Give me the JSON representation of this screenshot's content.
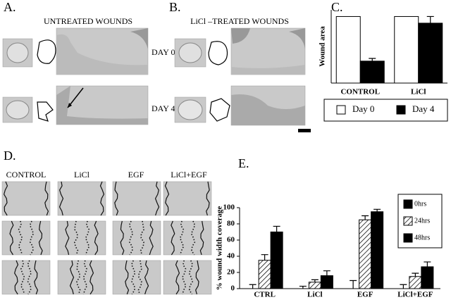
{
  "panels": {
    "A": {
      "label": "A.",
      "title": "UNTREATED WOUNDS"
    },
    "B": {
      "label": "B.",
      "title": "LiCl –TREATED WOUNDS"
    },
    "day_labels": [
      "DAY 0",
      "DAY 4"
    ],
    "C": {
      "label": "C."
    },
    "D": {
      "label": "D.",
      "columns": [
        "CONTROL",
        "LiCl",
        "EGF",
        "LiCl+EGF"
      ]
    },
    "E": {
      "label": "E."
    }
  },
  "chart_data": [
    {
      "type": "bar",
      "y_label": "Wound area",
      "categories": [
        "CONTROL",
        "LiCl"
      ],
      "ylim": [
        0,
        110
      ],
      "series": [
        {
          "name": "Day 0",
          "color": "#ffffff",
          "values": [
            100,
            100
          ]
        },
        {
          "name": "Day 4",
          "color": "#000000",
          "values": [
            33,
            90
          ],
          "errors": [
            4,
            10
          ]
        }
      ]
    },
    {
      "type": "bar",
      "y_label": "% wound width coverage",
      "categories": [
        "CTRL",
        "LiCl",
        "EGF",
        "LiCl+EGF"
      ],
      "ylim": [
        0,
        100
      ],
      "yticks": [
        0,
        20,
        40,
        60,
        80,
        100
      ],
      "series": [
        {
          "name": "0hrs",
          "color": "#000000",
          "values": [
            0,
            0,
            0,
            0
          ],
          "errors": [
            5,
            3,
            10,
            5
          ]
        },
        {
          "name": "24hrs",
          "color": "#ffffff",
          "hatch": true,
          "values": [
            35,
            8,
            85,
            15
          ],
          "errors": [
            7,
            3,
            5,
            4
          ]
        },
        {
          "name": "48hrs",
          "color": "#000000",
          "values": [
            70,
            16,
            95,
            27
          ],
          "errors": [
            7,
            6,
            3,
            6
          ]
        }
      ]
    }
  ]
}
